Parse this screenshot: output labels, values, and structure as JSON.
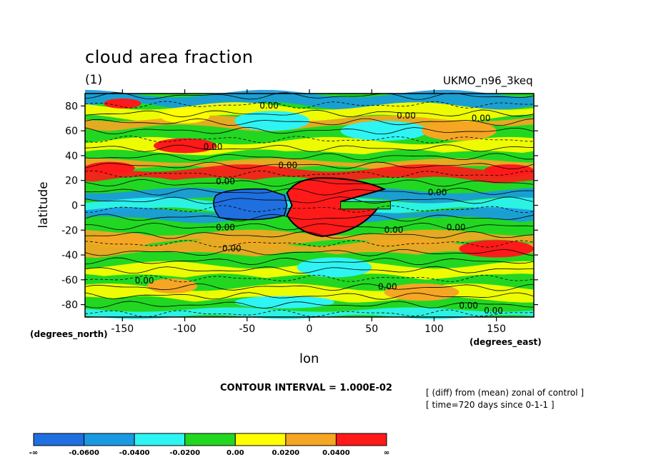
{
  "figure": {
    "title": "cloud area fraction",
    "subtitle": "(1)",
    "model": "UKMO_n96_3keq",
    "ylabel": "latitude",
    "xlabel": "lon",
    "yunits": "(degrees_north)",
    "xunits": "(degrees_east)",
    "contour_interval": "CONTOUR INTERVAL = 1.000E-02",
    "note_line1": "[ (diff) from (mean) zonal of control ]",
    "note_line2": "[ time=720 days since 0-1-1 ]"
  },
  "chart_data": {
    "type": "heatmap",
    "title": "cloud area fraction",
    "xlabel": "lon",
    "ylabel": "latitude",
    "xlim": [
      -180,
      180
    ],
    "ylim": [
      -90,
      90
    ],
    "x_ticks": [
      -150,
      -100,
      -50,
      0,
      50,
      100,
      150
    ],
    "y_ticks": [
      80,
      60,
      40,
      20,
      0,
      -20,
      -40,
      -60,
      -80
    ],
    "contour_labels": [
      {
        "text": "0.00",
        "lon": -40,
        "lat": 78
      },
      {
        "text": "0.00",
        "lon": 70,
        "lat": 70
      },
      {
        "text": "0.00",
        "lon": 130,
        "lat": 68
      },
      {
        "text": "0.00",
        "lon": -85,
        "lat": 45
      },
      {
        "text": "0.00",
        "lon": -25,
        "lat": 30
      },
      {
        "text": "0.00",
        "lon": -75,
        "lat": 17
      },
      {
        "text": "0.00",
        "lon": 95,
        "lat": 8
      },
      {
        "text": "0.00",
        "lon": -75,
        "lat": -20
      },
      {
        "text": "0.00",
        "lon": 60,
        "lat": -22
      },
      {
        "text": "0.00",
        "lon": 110,
        "lat": -20
      },
      {
        "text": "0.00",
        "lon": -70,
        "lat": -37
      },
      {
        "text": "0.00",
        "lon": -140,
        "lat": -63
      },
      {
        "text": "0.00",
        "lon": 55,
        "lat": -68
      },
      {
        "text": "0.00",
        "lon": 120,
        "lat": -83
      },
      {
        "text": "0.00",
        "lon": 140,
        "lat": -87
      }
    ],
    "colorbar": {
      "levels": [
        "-∞",
        "-0.0600",
        "-0.0400",
        "-0.0200",
        "0.00",
        "0.0200",
        "0.0400",
        "∞"
      ],
      "colors": [
        "#1f6fe0",
        "#1a9ae0",
        "#2ef4f4",
        "#22d722",
        "#ffff00",
        "#f5a623",
        "#ff1a1a"
      ]
    },
    "regions": [
      {
        "name": "equatorial positive anomaly",
        "class": "0.0400+",
        "color": "#ff1a1a",
        "lon_range": [
          -20,
          60
        ],
        "lat_range": [
          -25,
          25
        ]
      },
      {
        "name": "equatorial negative anomaly",
        "class": "<-0.0600",
        "color": "#1f6fe0",
        "lon_range": [
          -75,
          -20
        ],
        "lat_range": [
          -12,
          12
        ]
      }
    ]
  }
}
